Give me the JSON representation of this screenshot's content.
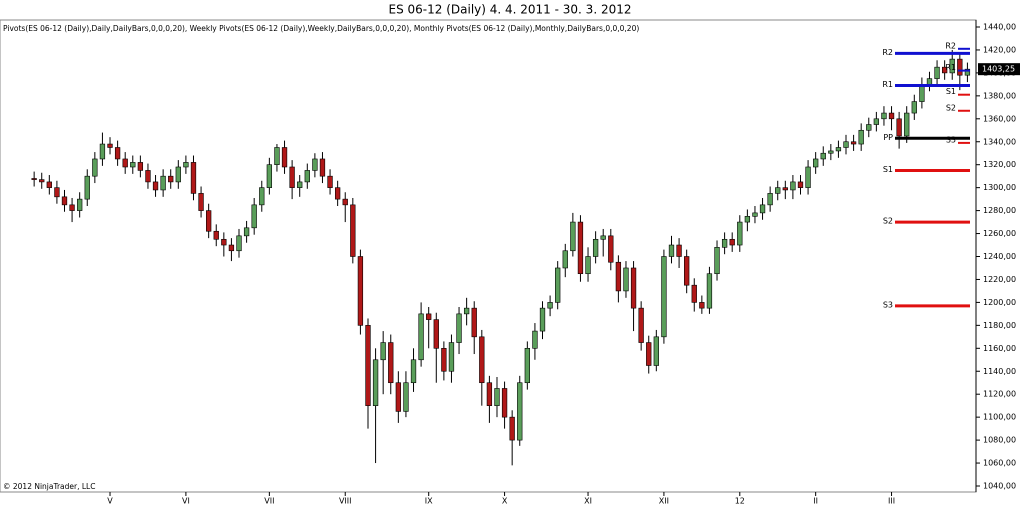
{
  "chart_data": {
    "type": "candlestick",
    "title": "ES 06-12 (Daily)  4. 4. 2011 - 30. 3. 2012",
    "indicators": "Pivots(ES 06-12 (Daily),Daily,DailyBars,0,0,0,20), Weekly Pivots(ES 06-12 (Daily),Weekly,DailyBars,0,0,0,20), Monthly Pivots(ES 06-12 (Daily),Monthly,DailyBars,0,0,0,20)",
    "copyright": "© 2012 NinjaTrader, LLC",
    "up_color": "#5a9e5a",
    "down_color": "#b01818",
    "categories": [
      null,
      null,
      null,
      null,
      null,
      null,
      null,
      null,
      null,
      null,
      "V",
      null,
      null,
      null,
      null,
      null,
      null,
      null,
      null,
      null,
      "VI",
      null,
      null,
      null,
      null,
      null,
      null,
      null,
      null,
      null,
      null,
      "VII",
      null,
      null,
      null,
      null,
      null,
      null,
      null,
      null,
      null,
      "VIII",
      null,
      null,
      null,
      null,
      null,
      null,
      null,
      null,
      null,
      null,
      "IX",
      null,
      null,
      null,
      null,
      null,
      null,
      null,
      null,
      null,
      "X",
      null,
      null,
      null,
      null,
      null,
      null,
      null,
      null,
      null,
      null,
      "XI",
      null,
      null,
      null,
      null,
      null,
      null,
      null,
      null,
      null,
      "XII",
      null,
      null,
      null,
      null,
      null,
      null,
      null,
      null,
      null,
      "12",
      null,
      null,
      null,
      null,
      null,
      null,
      null,
      null,
      null,
      "II",
      null,
      null,
      null,
      null,
      null,
      null,
      null,
      null,
      null,
      "III",
      null,
      null,
      null,
      null,
      null,
      null,
      null,
      null,
      null,
      null
    ],
    "open": [
      1308,
      1307,
      1305,
      1300,
      1292,
      1285,
      1280,
      1290,
      1310,
      1325,
      1338,
      1335,
      1325,
      1318,
      1322,
      1315,
      1305,
      1298,
      1310,
      1305,
      1318,
      1322,
      1295,
      1280,
      1262,
      1255,
      1250,
      1245,
      1258,
      1265,
      1285,
      1300,
      1320,
      1335,
      1318,
      1300,
      1305,
      1315,
      1325,
      1310,
      1300,
      1290,
      1285,
      1240,
      1180,
      1110,
      1150,
      1165,
      1130,
      1105,
      1130,
      1150,
      1190,
      1185,
      1160,
      1140,
      1165,
      1190,
      1195,
      1170,
      1130,
      1110,
      1125,
      1100,
      1080,
      1130,
      1160,
      1175,
      1195,
      1200,
      1230,
      1245,
      1270,
      1225,
      1240,
      1255,
      1258,
      1235,
      1210,
      1230,
      1195,
      1165,
      1145,
      1170,
      1240,
      1250,
      1240,
      1215,
      1200,
      1195,
      1225,
      1248,
      1255,
      1250,
      1270,
      1275,
      1278,
      1285,
      1295,
      1300,
      1298,
      1305,
      1300,
      1318,
      1325,
      1330,
      1332,
      1335,
      1340,
      1338,
      1350,
      1355,
      1360,
      1365,
      1360,
      1345,
      1365,
      1375,
      1390,
      1395,
      1405,
      1400,
      1412,
      1398
    ],
    "high": [
      1314,
      1313,
      1311,
      1306,
      1298,
      1291,
      1296,
      1316,
      1331,
      1348,
      1344,
      1341,
      1331,
      1328,
      1328,
      1321,
      1311,
      1316,
      1316,
      1324,
      1328,
      1328,
      1301,
      1286,
      1268,
      1261,
      1256,
      1264,
      1271,
      1291,
      1306,
      1326,
      1338,
      1341,
      1324,
      1311,
      1321,
      1330,
      1331,
      1316,
      1306,
      1296,
      1291,
      1246,
      1186,
      1160,
      1175,
      1172,
      1140,
      1140,
      1160,
      1200,
      1196,
      1191,
      1166,
      1172,
      1196,
      1204,
      1201,
      1176,
      1136,
      1135,
      1131,
      1106,
      1136,
      1166,
      1182,
      1201,
      1206,
      1236,
      1251,
      1278,
      1276,
      1248,
      1262,
      1264,
      1264,
      1241,
      1236,
      1236,
      1201,
      1171,
      1176,
      1246,
      1258,
      1256,
      1246,
      1221,
      1206,
      1231,
      1254,
      1261,
      1261,
      1276,
      1281,
      1284,
      1291,
      1301,
      1306,
      1306,
      1311,
      1311,
      1324,
      1331,
      1336,
      1338,
      1341,
      1346,
      1346,
      1356,
      1361,
      1366,
      1371,
      1371,
      1366,
      1371,
      1381,
      1396,
      1401,
      1411,
      1411,
      1420,
      1418,
      1409
    ],
    "low": [
      1301,
      1299,
      1294,
      1286,
      1279,
      1270,
      1274,
      1284,
      1304,
      1319,
      1329,
      1319,
      1312,
      1312,
      1309,
      1299,
      1292,
      1292,
      1299,
      1299,
      1312,
      1289,
      1274,
      1256,
      1249,
      1240,
      1236,
      1239,
      1252,
      1259,
      1279,
      1294,
      1314,
      1312,
      1290,
      1292,
      1299,
      1309,
      1304,
      1294,
      1284,
      1270,
      1234,
      1172,
      1090,
      1060,
      1120,
      1120,
      1095,
      1100,
      1122,
      1144,
      1160,
      1130,
      1132,
      1130,
      1155,
      1180,
      1155,
      1110,
      1095,
      1100,
      1090,
      1058,
      1075,
      1124,
      1150,
      1168,
      1188,
      1194,
      1222,
      1240,
      1218,
      1218,
      1234,
      1240,
      1228,
      1200,
      1204,
      1175,
      1158,
      1138,
      1140,
      1164,
      1234,
      1230,
      1208,
      1192,
      1190,
      1190,
      1219,
      1242,
      1244,
      1244,
      1262,
      1269,
      1272,
      1279,
      1289,
      1290,
      1290,
      1294,
      1294,
      1312,
      1319,
      1324,
      1326,
      1329,
      1332,
      1332,
      1344,
      1349,
      1354,
      1350,
      1334,
      1339,
      1359,
      1369,
      1384,
      1389,
      1394,
      1394,
      1385,
      1392
    ],
    "close": [
      1307,
      1305,
      1300,
      1292,
      1285,
      1280,
      1290,
      1310,
      1325,
      1338,
      1335,
      1325,
      1318,
      1322,
      1315,
      1305,
      1298,
      1310,
      1305,
      1318,
      1322,
      1295,
      1280,
      1262,
      1255,
      1250,
      1245,
      1258,
      1265,
      1285,
      1300,
      1320,
      1335,
      1318,
      1300,
      1305,
      1315,
      1325,
      1310,
      1300,
      1290,
      1285,
      1240,
      1180,
      1110,
      1150,
      1165,
      1130,
      1105,
      1130,
      1150,
      1190,
      1185,
      1160,
      1140,
      1165,
      1190,
      1195,
      1170,
      1130,
      1110,
      1125,
      1100,
      1080,
      1130,
      1160,
      1175,
      1195,
      1200,
      1230,
      1245,
      1270,
      1225,
      1240,
      1255,
      1258,
      1235,
      1210,
      1230,
      1195,
      1165,
      1145,
      1170,
      1240,
      1250,
      1240,
      1215,
      1200,
      1195,
      1225,
      1248,
      1255,
      1250,
      1270,
      1275,
      1278,
      1285,
      1295,
      1300,
      1298,
      1305,
      1300,
      1318,
      1325,
      1330,
      1332,
      1335,
      1340,
      1338,
      1350,
      1355,
      1360,
      1365,
      1360,
      1345,
      1365,
      1375,
      1390,
      1395,
      1405,
      1400,
      1412,
      1398,
      1403.25
    ],
    "ylim": [
      1040,
      1440
    ],
    "yticks": [
      {
        "value": 1040,
        "label": "1040,00"
      },
      {
        "value": 1060,
        "label": "1060,00"
      },
      {
        "value": 1080,
        "label": "1080,00"
      },
      {
        "value": 1100,
        "label": "1100,00"
      },
      {
        "value": 1120,
        "label": "1120,00"
      },
      {
        "value": 1140,
        "label": "1140,00"
      },
      {
        "value": 1160,
        "label": "1160,00"
      },
      {
        "value": 1180,
        "label": "1180,00"
      },
      {
        "value": 1200,
        "label": "1200,00"
      },
      {
        "value": 1220,
        "label": "1220,00"
      },
      {
        "value": 1240,
        "label": "1240,00"
      },
      {
        "value": 1260,
        "label": "1260,00"
      },
      {
        "value": 1280,
        "label": "1280,00"
      },
      {
        "value": 1300,
        "label": "1300,00"
      },
      {
        "value": 1320,
        "label": "1320,00"
      },
      {
        "value": 1340,
        "label": "1340,00"
      },
      {
        "value": 1360,
        "label": "1360,00"
      },
      {
        "value": 1380,
        "label": "1380,00"
      },
      {
        "value": 1400,
        "label": "1400,00"
      },
      {
        "value": 1420,
        "label": "1420,00"
      },
      {
        "value": 1440,
        "label": "1440,00"
      }
    ],
    "last_price": {
      "value": 1403.25,
      "label": "1403,25"
    },
    "monthly_pivots": [
      {
        "label": "R2",
        "value": 1417,
        "color": "#1010d0"
      },
      {
        "label": "R1",
        "value": 1389,
        "color": "#1010d0"
      },
      {
        "label": "PP",
        "value": 1343,
        "color": "#000000"
      },
      {
        "label": "S1",
        "value": 1315,
        "color": "#e01010"
      },
      {
        "label": "S2",
        "value": 1270,
        "color": "#e01010"
      },
      {
        "label": "S3",
        "value": 1197,
        "color": "#e01010"
      }
    ],
    "weekly_pivots": [
      {
        "label": "R2",
        "value": 1421,
        "color": "#1010d0"
      },
      {
        "label": "R1",
        "value": 1402,
        "color": "#1010d0"
      },
      {
        "label": "S1",
        "value": 1381,
        "color": "#e01010"
      },
      {
        "label": "S2",
        "value": 1367,
        "color": "#e01010"
      },
      {
        "label": "S3",
        "value": 1339,
        "color": "#e01010"
      }
    ]
  }
}
